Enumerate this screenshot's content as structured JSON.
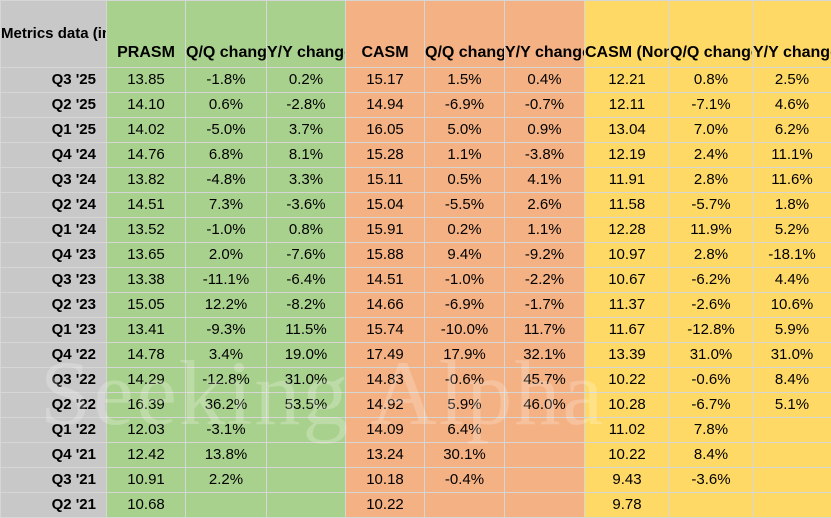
{
  "header": {
    "label": "Metrics data (in cents)",
    "columns": [
      "PRASM",
      "Q/Q change",
      "Y/Y change",
      "CASM",
      "Q/Q change",
      "Y/Y change",
      "CASM (Non-GAAP)",
      "Q/Q change",
      "Y/Y change"
    ]
  },
  "rows": [
    {
      "label": "Q3 '25",
      "cells": [
        "13.85",
        "-1.8%",
        "0.2%",
        "15.17",
        "1.5%",
        "0.4%",
        "12.21",
        "0.8%",
        "2.5%"
      ]
    },
    {
      "label": "Q2 '25",
      "cells": [
        "14.10",
        "0.6%",
        "-2.8%",
        "14.94",
        "-6.9%",
        "-0.7%",
        "12.11",
        "-7.1%",
        "4.6%"
      ]
    },
    {
      "label": "Q1 '25",
      "cells": [
        "14.02",
        "-5.0%",
        "3.7%",
        "16.05",
        "5.0%",
        "0.9%",
        "13.04",
        "7.0%",
        "6.2%"
      ]
    },
    {
      "label": "Q4 '24",
      "cells": [
        "14.76",
        "6.8%",
        "8.1%",
        "15.28",
        "1.1%",
        "-3.8%",
        "12.19",
        "2.4%",
        "11.1%"
      ]
    },
    {
      "label": "Q3 '24",
      "cells": [
        "13.82",
        "-4.8%",
        "3.3%",
        "15.11",
        "0.5%",
        "4.1%",
        "11.91",
        "2.8%",
        "11.6%"
      ]
    },
    {
      "label": "Q2 '24",
      "cells": [
        "14.51",
        "7.3%",
        "-3.6%",
        "15.04",
        "-5.5%",
        "2.6%",
        "11.58",
        "-5.7%",
        "1.8%"
      ]
    },
    {
      "label": "Q1 '24",
      "cells": [
        "13.52",
        "-1.0%",
        "0.8%",
        "15.91",
        "0.2%",
        "1.1%",
        "12.28",
        "11.9%",
        "5.2%"
      ]
    },
    {
      "label": "Q4 '23",
      "cells": [
        "13.65",
        "2.0%",
        "-7.6%",
        "15.88",
        "9.4%",
        "-9.2%",
        "10.97",
        "2.8%",
        "-18.1%"
      ]
    },
    {
      "label": "Q3 '23",
      "cells": [
        "13.38",
        "-11.1%",
        "-6.4%",
        "14.51",
        "-1.0%",
        "-2.2%",
        "10.67",
        "-6.2%",
        "4.4%"
      ]
    },
    {
      "label": "Q2 '23",
      "cells": [
        "15.05",
        "12.2%",
        "-8.2%",
        "14.66",
        "-6.9%",
        "-1.7%",
        "11.37",
        "-2.6%",
        "10.6%"
      ]
    },
    {
      "label": "Q1 '23",
      "cells": [
        "13.41",
        "-9.3%",
        "11.5%",
        "15.74",
        "-10.0%",
        "11.7%",
        "11.67",
        "-12.8%",
        "5.9%"
      ]
    },
    {
      "label": "Q4 '22",
      "cells": [
        "14.78",
        "3.4%",
        "19.0%",
        "17.49",
        "17.9%",
        "32.1%",
        "13.39",
        "31.0%",
        "31.0%"
      ]
    },
    {
      "label": "Q3 '22",
      "cells": [
        "14.29",
        "-12.8%",
        "31.0%",
        "14.83",
        "-0.6%",
        "45.7%",
        "10.22",
        "-0.6%",
        "8.4%"
      ]
    },
    {
      "label": "Q2 '22",
      "cells": [
        "16.39",
        "36.2%",
        "53.5%",
        "14.92",
        "5.9%",
        "46.0%",
        "10.28",
        "-6.7%",
        "5.1%"
      ]
    },
    {
      "label": "Q1 '22",
      "cells": [
        "12.03",
        "-3.1%",
        "",
        "14.09",
        "6.4%",
        "",
        "11.02",
        "7.8%",
        ""
      ]
    },
    {
      "label": "Q4 '21",
      "cells": [
        "12.42",
        "13.8%",
        "",
        "13.24",
        "30.1%",
        "",
        "10.22",
        "8.4%",
        ""
      ]
    },
    {
      "label": "Q3 '21",
      "cells": [
        "10.91",
        "2.2%",
        "",
        "10.18",
        "-0.4%",
        "",
        "9.43",
        "-3.6%",
        ""
      ]
    },
    {
      "label": "Q2 '21",
      "cells": [
        "10.68",
        "",
        "",
        "10.22",
        "",
        "",
        "9.78",
        "",
        ""
      ]
    }
  ],
  "watermark": "Seeking Alpha",
  "colors": {
    "label_column": "#c8c8c8",
    "prasm_group": "#a9d18e",
    "casm_group": "#f4b183",
    "casm_non_gaap_group": "#ffd966"
  }
}
